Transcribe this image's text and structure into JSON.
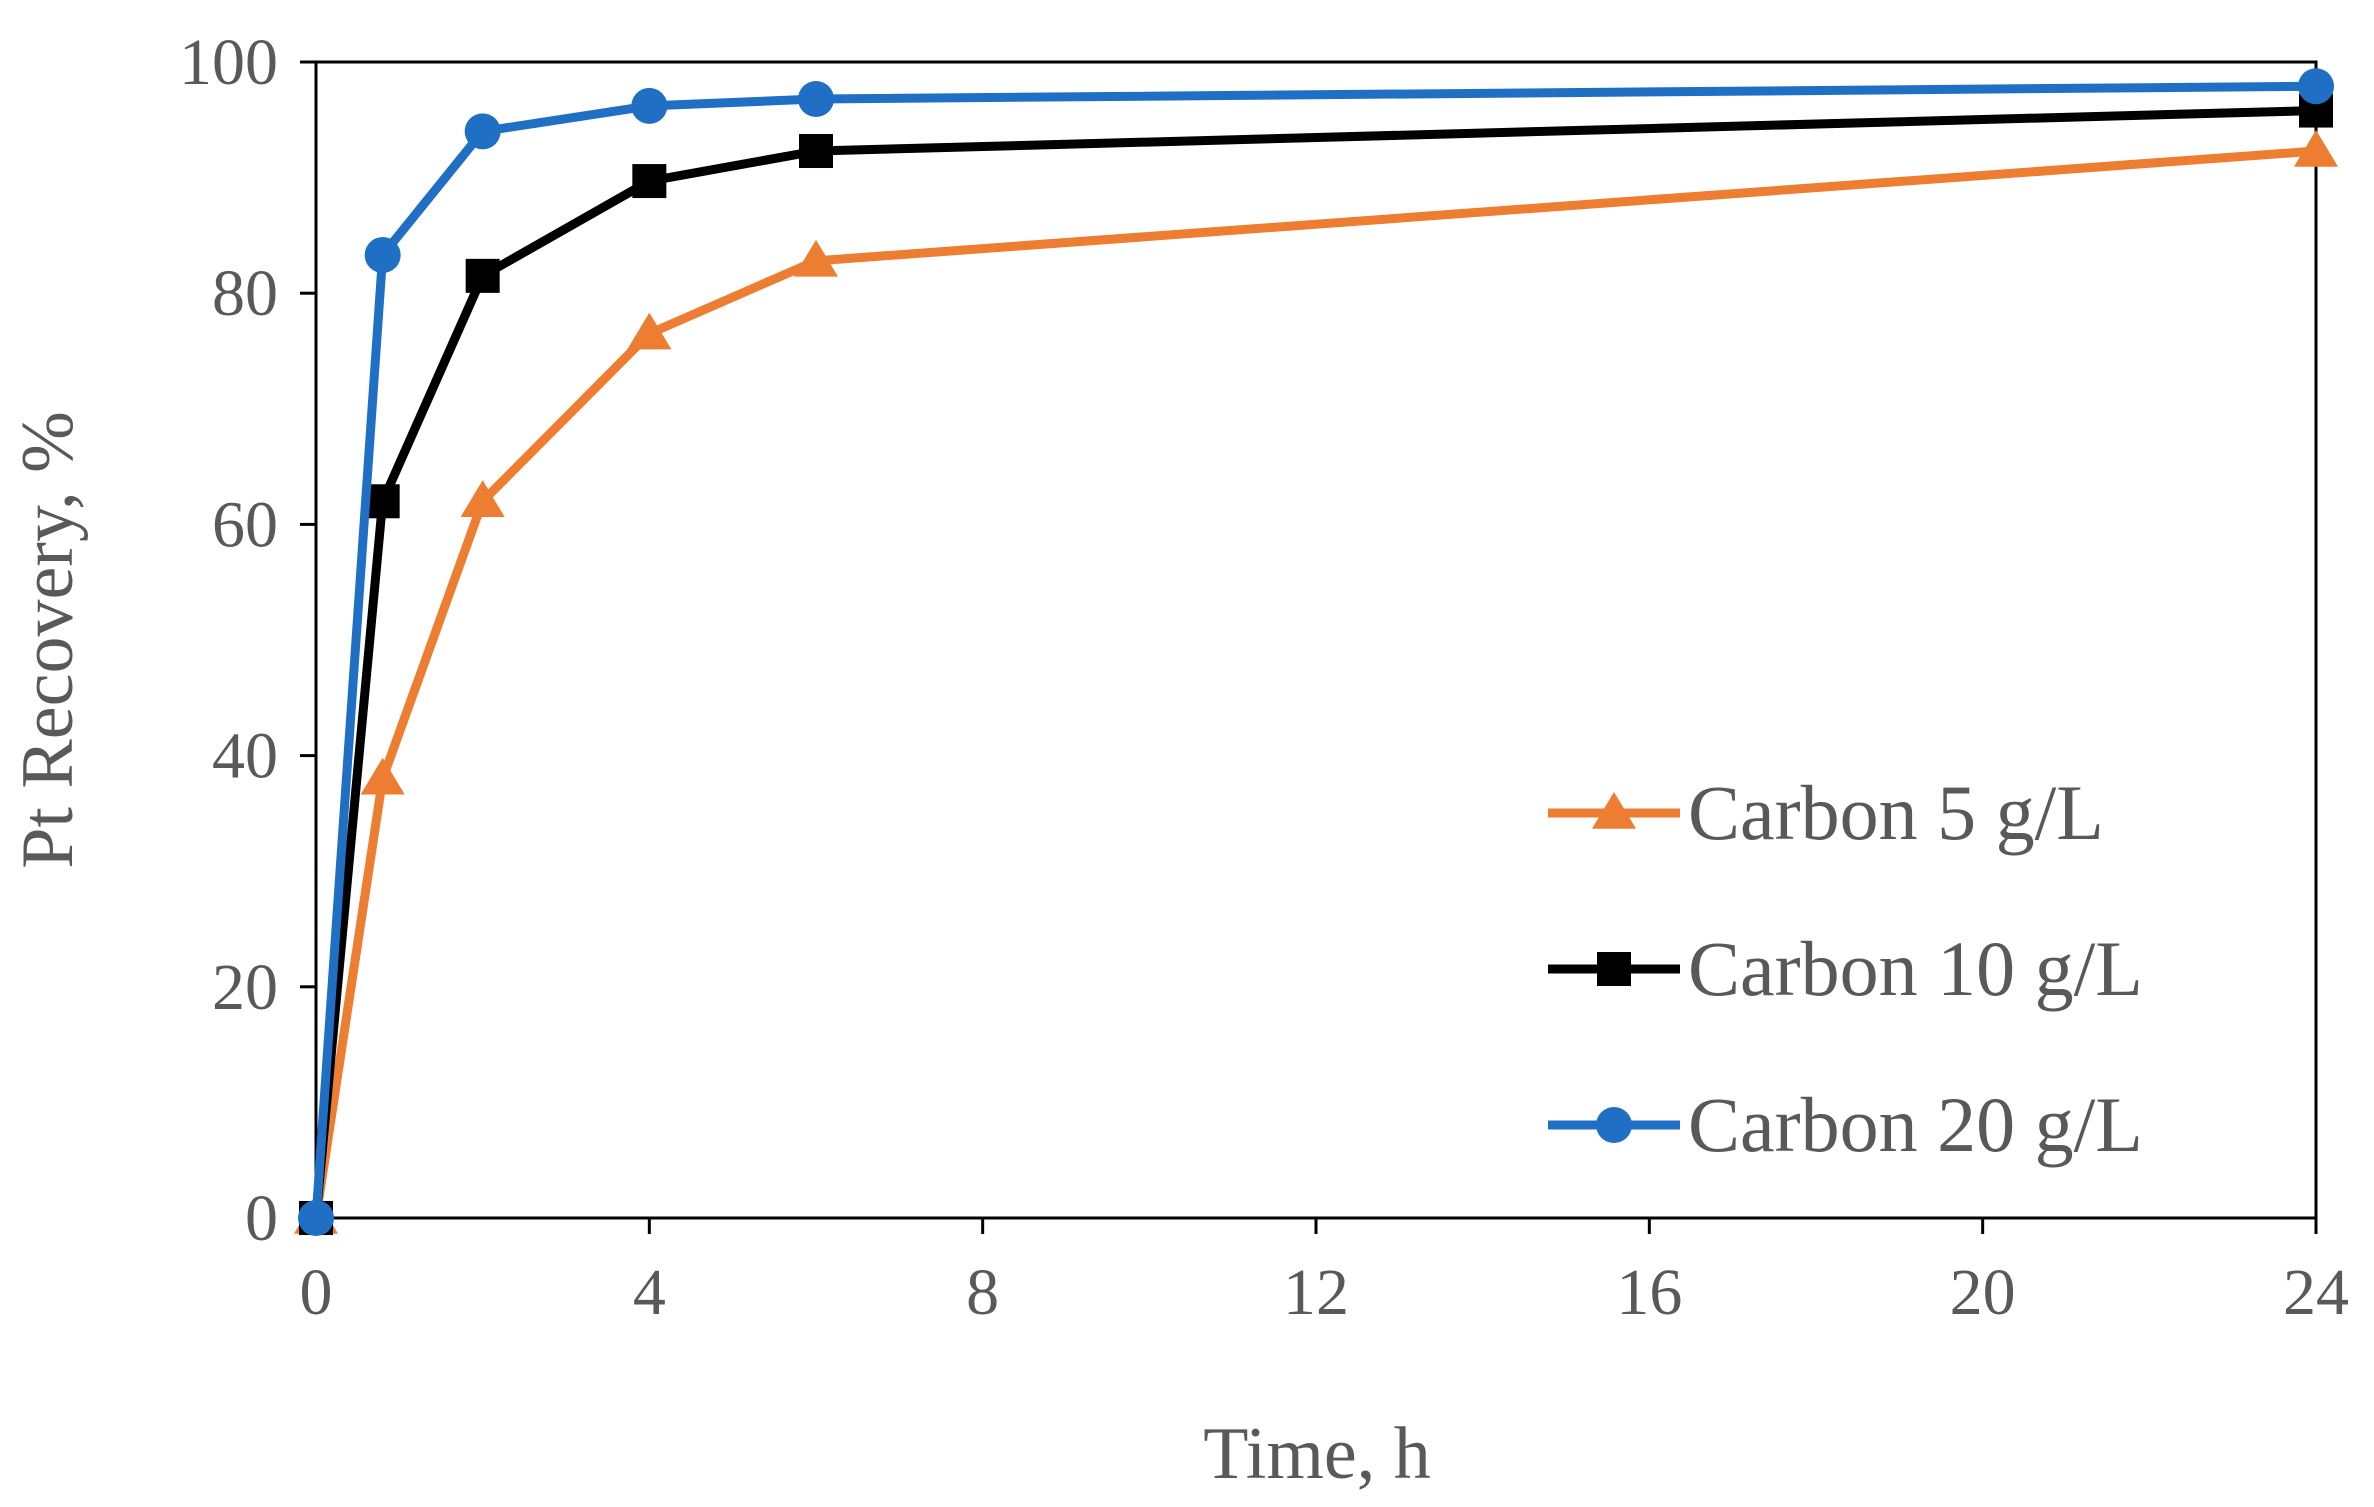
{
  "chart_data": {
    "type": "line",
    "title": "",
    "xlabel": "Time, h",
    "ylabel": "Pt Recovery, %",
    "xlim": [
      0,
      24
    ],
    "ylim": [
      0,
      100
    ],
    "xticks": [
      0,
      4,
      8,
      12,
      16,
      20,
      24
    ],
    "yticks": [
      0,
      20,
      40,
      60,
      80,
      100
    ],
    "grid": false,
    "legend_position": "bottom-right",
    "series": [
      {
        "name": "Carbon 5 g/L",
        "color": "#ED7D31",
        "marker": "triangle",
        "x": [
          0,
          0.8,
          2,
          4,
          6,
          24
        ],
        "y": [
          0,
          38,
          62,
          76.5,
          82.8,
          92.3
        ]
      },
      {
        "name": "Carbon 10 g/L",
        "color": "#000000",
        "marker": "square",
        "x": [
          0,
          0.8,
          2,
          4,
          6,
          24
        ],
        "y": [
          0,
          62,
          81.5,
          89.7,
          92.3,
          95.8
        ]
      },
      {
        "name": "Carbon 20 g/L",
        "color": "#1F6FC5",
        "marker": "circle",
        "x": [
          0,
          0.8,
          2,
          4,
          6,
          24
        ],
        "y": [
          0,
          83.3,
          94,
          96.2,
          96.8,
          97.9
        ]
      }
    ]
  }
}
